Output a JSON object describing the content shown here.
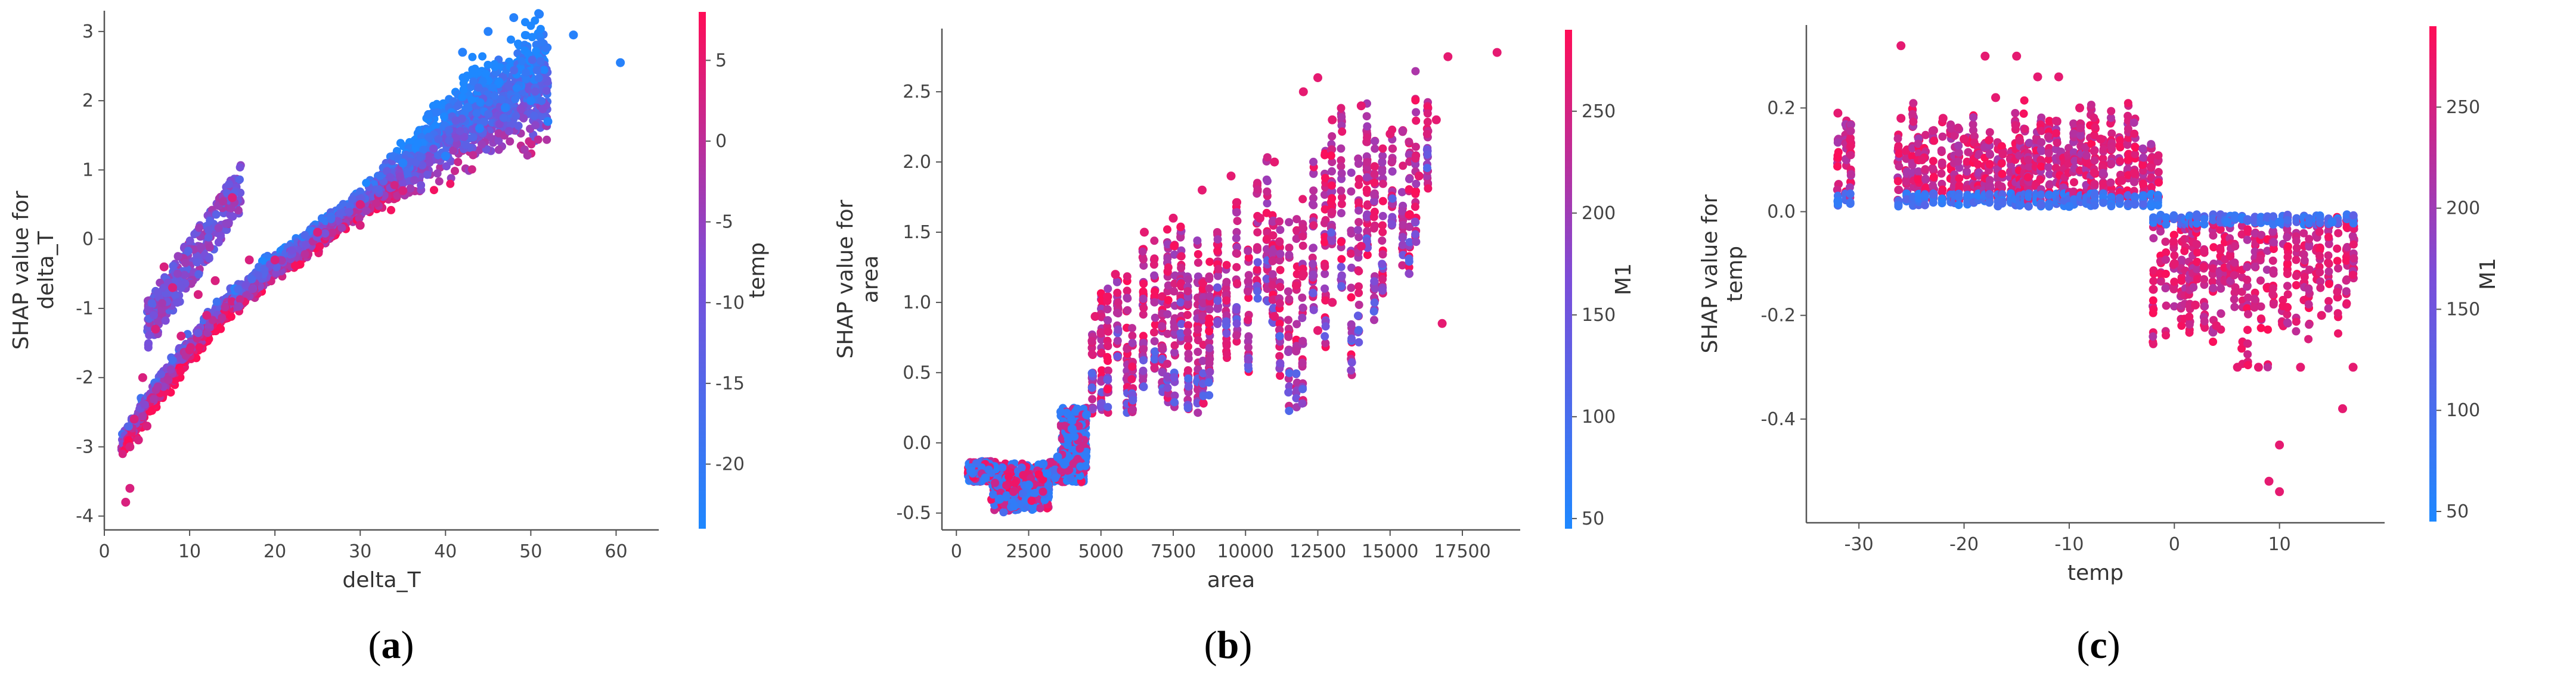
{
  "charts": [
    {
      "type": "scatter",
      "caption_letter": "a",
      "xlabel": "delta_T",
      "ylabel": [
        "SHAP value for",
        "delta_T"
      ],
      "colorbar_label": "temp",
      "xlim": [
        0,
        65
      ],
      "ylim": [
        -4.2,
        3.3
      ],
      "xticks": [
        0,
        10,
        20,
        30,
        40,
        50,
        60
      ],
      "yticks": [
        -4,
        -3,
        -2,
        -1,
        0,
        1,
        2,
        3
      ],
      "cbar_range": [
        -24,
        8
      ],
      "cbar_ticks": [
        5,
        0,
        -5,
        -10,
        -15,
        -20
      ],
      "color_scale": [
        "#1e88ff",
        "#7c4dd8",
        "#ff0d57"
      ],
      "curve": [
        [
          2,
          -3.0
        ],
        [
          5,
          -2.4
        ],
        [
          10,
          -1.6
        ],
        [
          15,
          -0.9
        ],
        [
          20,
          -0.4
        ],
        [
          25,
          0.05
        ],
        [
          30,
          0.5
        ],
        [
          35,
          1.0
        ],
        [
          40,
          1.55
        ],
        [
          45,
          1.95
        ],
        [
          50,
          2.2
        ],
        [
          55,
          2.5
        ],
        [
          60,
          2.5
        ]
      ],
      "chart_data": {
        "type": "scatter",
        "series": [
          {
            "points": [
              [
                2.5,
                -3.8
              ],
              [
                3,
                -3.6
              ],
              [
                3,
                -3.0
              ],
              [
                3.5,
                -2.6
              ],
              [
                4,
                -2.9
              ],
              [
                4.5,
                -2.0
              ],
              [
                5,
                -2.7
              ],
              [
                6,
                -1.3
              ],
              [
                7,
                -0.4
              ],
              [
                8,
                -0.7
              ],
              [
                9,
                -1.4
              ],
              [
                10,
                -1.6
              ],
              [
                11,
                -0.8
              ],
              [
                12,
                -1.1
              ],
              [
                13,
                -0.6
              ],
              [
                15,
                0.6
              ],
              [
                17,
                -0.3
              ],
              [
                20,
                -0.3
              ],
              [
                25,
                0.1
              ],
              [
                30,
                0.5
              ],
              [
                35,
                1.1
              ],
              [
                38,
                1.8
              ],
              [
                42,
                2.7
              ],
              [
                45,
                3.0
              ],
              [
                48,
                3.2
              ],
              [
                51,
                3.25
              ],
              [
                55,
                2.95
              ],
              [
                60.5,
                2.55
              ],
              [
                40,
                1.2
              ],
              [
                44,
                1.6
              ],
              [
                47,
                1.9
              ],
              [
                50,
                2.0
              ],
              [
                52,
                1.7
              ],
              [
                35,
                0.7
              ],
              [
                30,
                0.2
              ]
            ]
          }
        ]
      }
    },
    {
      "type": "scatter",
      "caption_letter": "b",
      "xlabel": "area",
      "ylabel": [
        "SHAP value for",
        "area"
      ],
      "colorbar_label": "M1",
      "xlim": [
        -500,
        19500
      ],
      "ylim": [
        -0.62,
        2.95
      ],
      "xticks": [
        0,
        2500,
        5000,
        7500,
        10000,
        12500,
        15000,
        17500
      ],
      "yticks": [
        -0.5,
        0.0,
        0.5,
        1.0,
        1.5,
        2.0,
        2.5
      ],
      "cbar_range": [
        45,
        290
      ],
      "cbar_ticks": [
        250,
        200,
        150,
        100,
        50
      ],
      "color_scale": [
        "#1e88ff",
        "#7c4dd8",
        "#ff0d57"
      ],
      "chart_data": {
        "type": "scatter",
        "series": [
          {
            "points": [
              [
                500,
                -0.2
              ],
              [
                1000,
                -0.25
              ],
              [
                1500,
                -0.4
              ],
              [
                2000,
                -0.45
              ],
              [
                2500,
                -0.3
              ],
              [
                3000,
                -0.15
              ],
              [
                3500,
                -0.1
              ],
              [
                4000,
                0.1
              ],
              [
                4500,
                0.2
              ],
              [
                4800,
                0.9
              ],
              [
                5500,
                1.2
              ],
              [
                6500,
                1.5
              ],
              [
                7500,
                1.6
              ],
              [
                8500,
                1.8
              ],
              [
                9500,
                1.9
              ],
              [
                10500,
                1.6
              ],
              [
                11000,
                2.0
              ],
              [
                12000,
                2.5
              ],
              [
                12500,
                2.6
              ],
              [
                13000,
                2.3
              ],
              [
                14000,
                2.4
              ],
              [
                15000,
                2.2
              ],
              [
                16000,
                1.9
              ],
              [
                16600,
                2.3
              ],
              [
                16800,
                0.85
              ],
              [
                17000,
                2.75
              ],
              [
                18700,
                2.78
              ],
              [
                12500,
                0.8
              ],
              [
                11000,
                0.9
              ],
              [
                12000,
                1.2
              ],
              [
                13000,
                1.0
              ],
              [
                14000,
                1.4
              ]
            ]
          }
        ]
      }
    },
    {
      "type": "scatter",
      "caption_letter": "c",
      "xlabel": "temp",
      "ylabel": [
        "SHAP value for",
        "temp"
      ],
      "colorbar_label": "M1",
      "xlim": [
        -35,
        20
      ],
      "ylim": [
        -0.6,
        0.36
      ],
      "xticks": [
        -30,
        -20,
        -10,
        0,
        10
      ],
      "yticks": [
        -0.4,
        -0.2,
        0.0,
        0.2
      ],
      "cbar_range": [
        45,
        290
      ],
      "cbar_ticks": [
        250,
        200,
        150,
        100,
        50
      ],
      "color_scale": [
        "#1e88ff",
        "#7c4dd8",
        "#ff0d57"
      ],
      "chart_data": {
        "type": "scatter",
        "series": [
          {
            "points": [
              [
                -32,
                0.19
              ],
              [
                -32,
                0.02
              ],
              [
                -26,
                0.32
              ],
              [
                -26,
                0.18
              ],
              [
                -24,
                0.1
              ],
              [
                -22,
                0.18
              ],
              [
                -20,
                0.14
              ],
              [
                -18,
                0.3
              ],
              [
                -17,
                0.22
              ],
              [
                -15,
                0.3
              ],
              [
                -13,
                0.26
              ],
              [
                -11,
                0.26
              ],
              [
                -9,
                0.2
              ],
              [
                -7,
                0.14
              ],
              [
                -5,
                0.06
              ],
              [
                -3,
                0.03
              ],
              [
                -2,
                -0.15
              ],
              [
                0,
                -0.1
              ],
              [
                2,
                -0.18
              ],
              [
                4,
                -0.22
              ],
              [
                6,
                -0.3
              ],
              [
                8,
                -0.3
              ],
              [
                9,
                -0.52
              ],
              [
                10,
                -0.54
              ],
              [
                10,
                -0.45
              ],
              [
                12,
                -0.3
              ],
              [
                14,
                -0.2
              ],
              [
                16,
                -0.38
              ],
              [
                17,
                -0.3
              ],
              [
                5,
                -0.02
              ],
              [
                10,
                -0.02
              ],
              [
                15,
                -0.02
              ],
              [
                -10,
                0.01
              ]
            ]
          }
        ]
      }
    }
  ]
}
